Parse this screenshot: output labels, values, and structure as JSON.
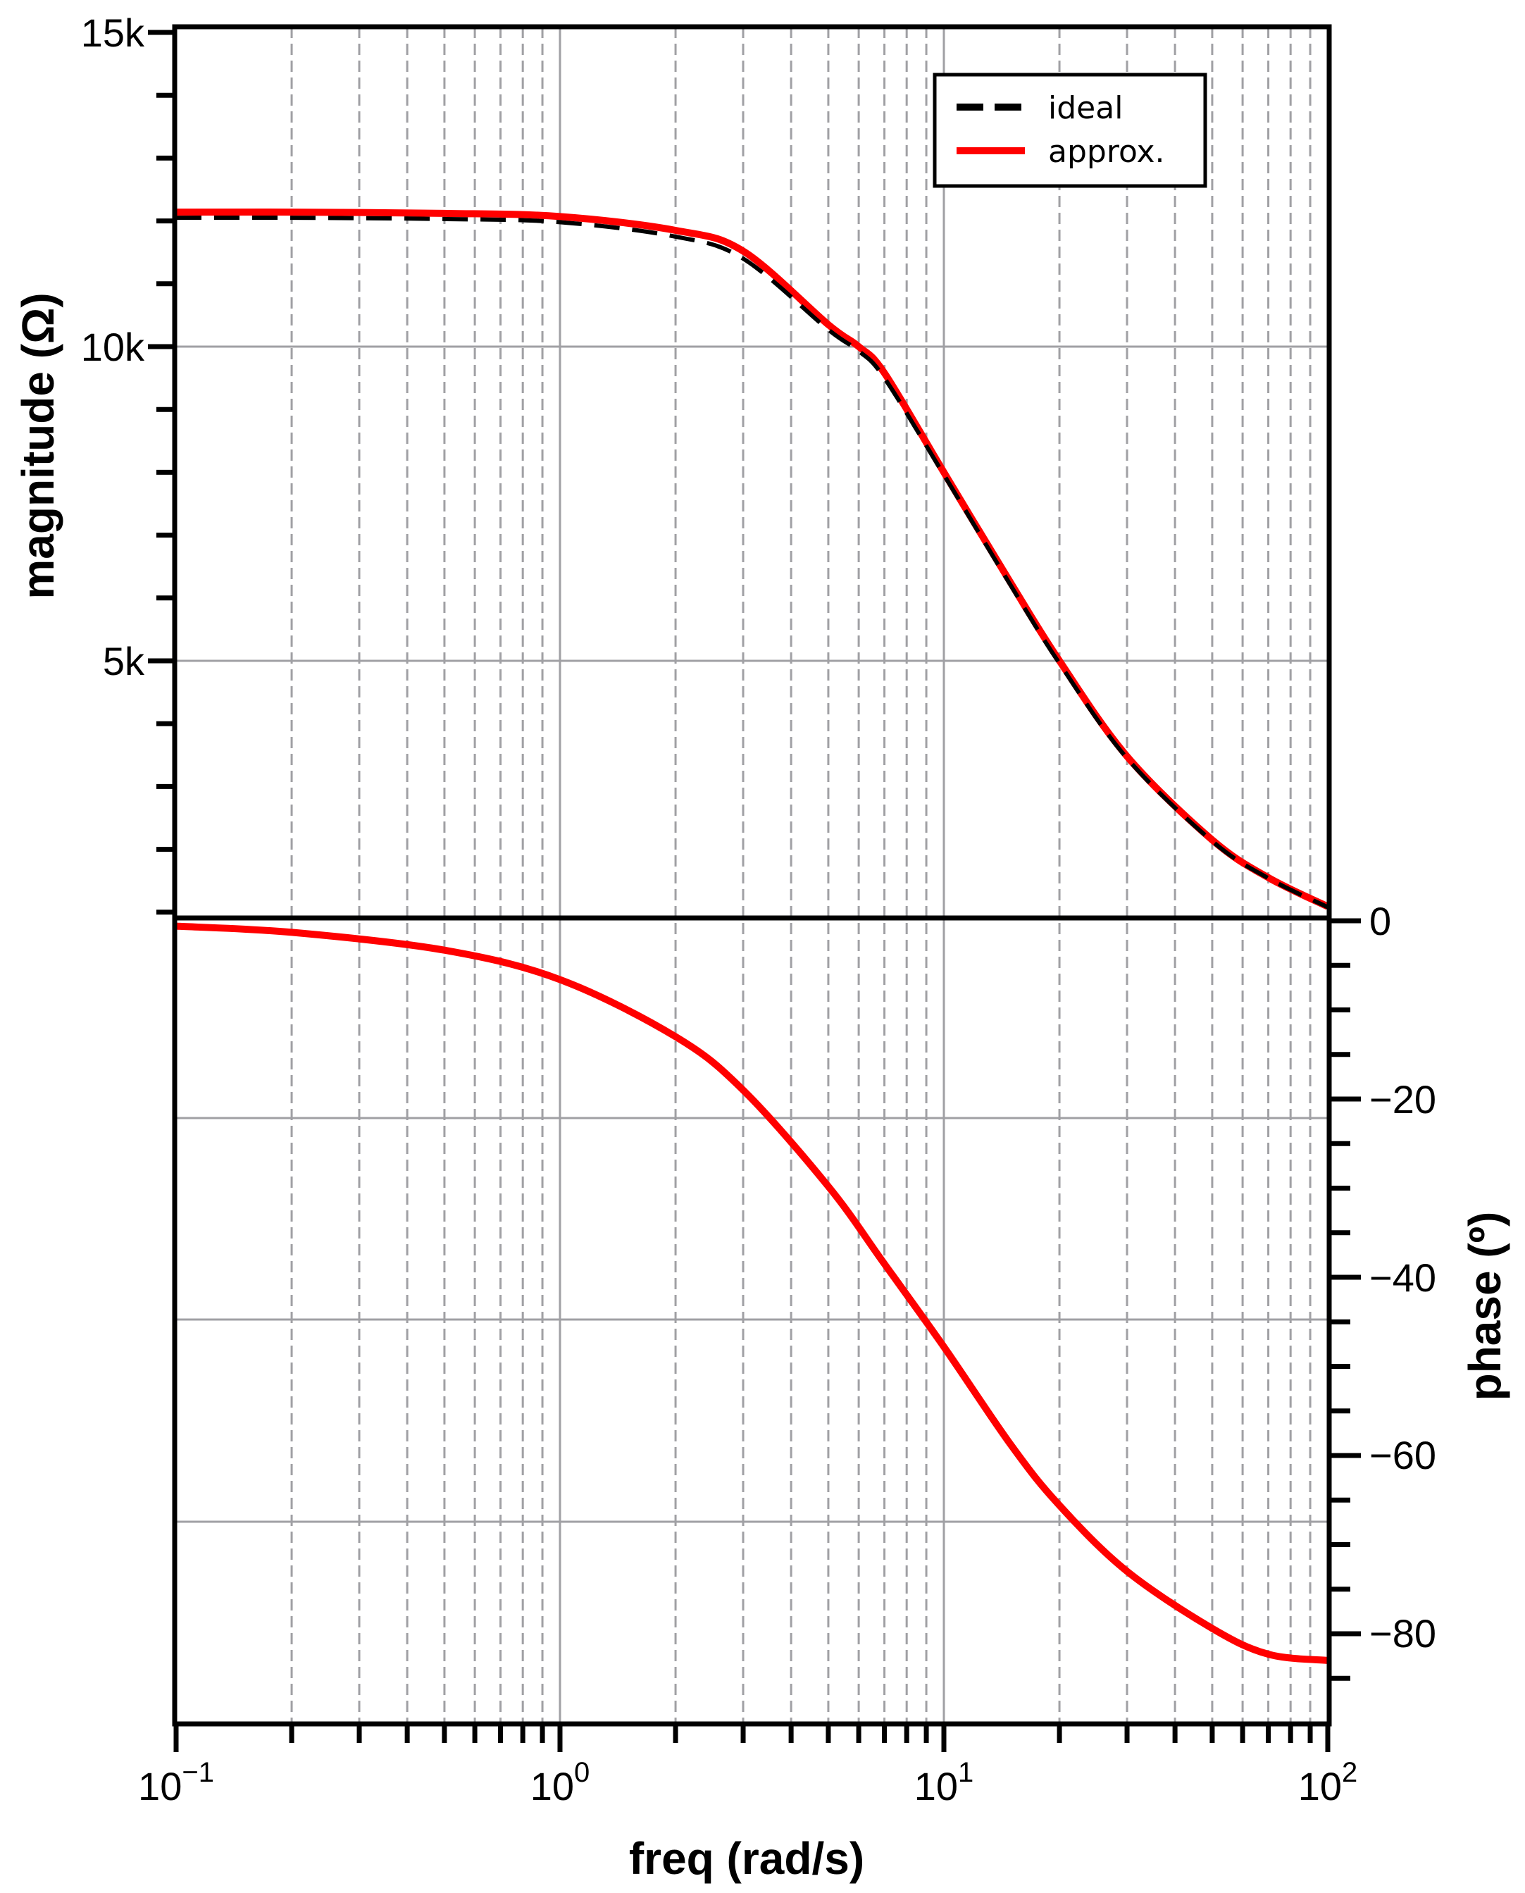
{
  "chart_data": {
    "type": "line",
    "title": "",
    "layout": "two stacked panels sharing a logarithmic x-axis (Bode plot)",
    "xlabel": "freq (rad/s)",
    "xscale": "log",
    "xlim": [
      0.1,
      100
    ],
    "xticks": [
      {
        "value": 0.1,
        "base": "10",
        "exp": "−1"
      },
      {
        "value": 1,
        "base": "10",
        "exp": "0"
      },
      {
        "value": 10,
        "base": "10",
        "exp": "1"
      },
      {
        "value": 100,
        "base": "10",
        "exp": "2"
      }
    ],
    "grid": true,
    "legend": {
      "position": "upper right of top panel",
      "entries": [
        {
          "label": "ideal",
          "color": "#000000",
          "style": "dashed"
        },
        {
          "label": "approx.",
          "color": "#ff0000",
          "style": "solid"
        }
      ]
    },
    "panels": [
      {
        "name": "magnitude",
        "ylabel": "magnitude (Ω)",
        "yaxis_side": "left",
        "ylim": [
          880,
          15000
        ],
        "yticks": [
          {
            "value": 15000,
            "label": "15k"
          },
          {
            "value": 10000,
            "label": "10k"
          },
          {
            "value": 5000,
            "label": "5k"
          }
        ],
        "x": [
          0.1,
          0.2,
          0.5,
          1,
          2,
          3,
          5,
          6,
          7,
          10,
          15,
          20,
          30,
          50,
          70,
          100
        ],
        "series": [
          {
            "name": "ideal",
            "color": "#000000",
            "style": "dashed",
            "values": [
              12050,
              12050,
              12030,
              11980,
              11750,
              11400,
              10270,
              9930,
              9500,
              7960,
              6180,
              4960,
              3450,
              2130,
              1540,
              1080
            ]
          },
          {
            "name": "approx.",
            "color": "#ff0000",
            "style": "solid",
            "values": [
              12140,
              12140,
              12120,
              12070,
              11850,
              11520,
              10350,
              10000,
              9580,
              8000,
              6220,
              5000,
              3480,
              2150,
              1550,
              1090
            ]
          }
        ]
      },
      {
        "name": "phase",
        "ylabel": "phase (º)",
        "yaxis_side": "right",
        "ylim": [
          -90.5,
          0
        ],
        "yticks": [
          {
            "value": 0,
            "label": "0"
          },
          {
            "value": -20,
            "label": "−20"
          },
          {
            "value": -40,
            "label": "−40"
          },
          {
            "value": -60,
            "label": "−60"
          },
          {
            "value": -80,
            "label": "−80"
          }
        ],
        "x": [
          0.1,
          0.2,
          0.5,
          1,
          2,
          3,
          5,
          7,
          10,
          15,
          20,
          30,
          50,
          70,
          100
        ],
        "series": [
          {
            "name": "ideal",
            "color": "#000000",
            "style": "dashed",
            "values": [
              -0.6,
              -1.3,
              -3.3,
              -6.6,
              -13.0,
              -19.0,
              -29.8,
              -38.5,
              -47.8,
              -58.9,
              -65.6,
              -73.0,
              -79.4,
              -82.3,
              -83.0
            ]
          },
          {
            "name": "approx.",
            "color": "#ff0000",
            "style": "solid",
            "values": [
              -0.6,
              -1.3,
              -3.3,
              -6.6,
              -13.0,
              -19.0,
              -29.8,
              -38.5,
              -47.8,
              -58.9,
              -65.6,
              -73.0,
              -79.4,
              -82.3,
              -83.0
            ]
          }
        ]
      }
    ]
  },
  "labels": {
    "mag_ylabel": "magnitude (Ω)",
    "phase_ylabel": "phase (º)",
    "xlabel": "freq (rad/s)",
    "mag_ticks": [
      "15k",
      "10k",
      "5k"
    ],
    "phase_ticks": [
      "0",
      "−20",
      "−40",
      "−60",
      "−80"
    ],
    "x_ticks": [
      {
        "base": "10",
        "exp": "−1"
      },
      {
        "base": "10",
        "exp": "0"
      },
      {
        "base": "10",
        "exp": "1"
      },
      {
        "base": "10",
        "exp": "2"
      }
    ],
    "legend_ideal": "ideal",
    "legend_approx": "approx."
  },
  "colors": {
    "approx": "#ff0000",
    "ideal": "#000000",
    "grid": "#a0a0a4",
    "axis": "#000000"
  }
}
